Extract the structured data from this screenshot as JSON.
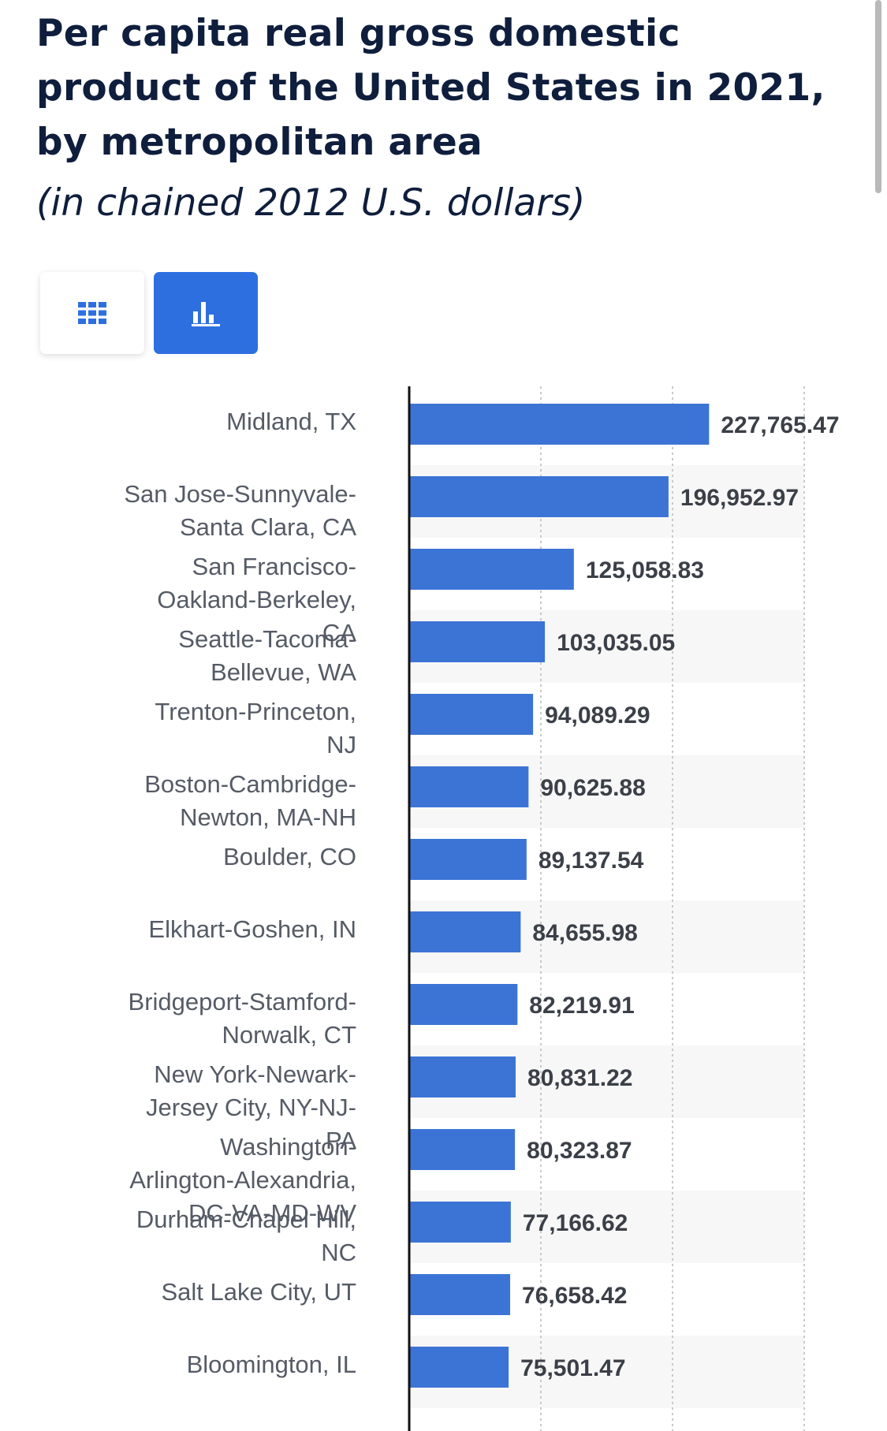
{
  "header": {
    "title": "Per capita real gross domestic product of the United States in 2021, by metropolitan area",
    "subtitle": "(in chained 2012 U.S. dollars)"
  },
  "view_toggle": {
    "table_icon": "grid-icon",
    "chart_icon": "bar-chart-icon",
    "active": "chart",
    "active_color": "#2e6fe0",
    "icon_color": "#2e6fe0"
  },
  "chart_data": {
    "type": "bar",
    "orientation": "horizontal",
    "categories": [
      "Midland, TX",
      "San Jose-Sunnyvale-Santa Clara, CA",
      "San Francisco-Oakland-Berkeley, CA",
      "Seattle-Tacoma-Bellevue, WA",
      "Trenton-Princeton, NJ",
      "Boston-Cambridge-Newton, MA-NH",
      "Boulder, CO",
      "Elkhart-Goshen, IN",
      "Bridgeport-Stamford-Norwalk, CT",
      "New York-Newark-Jersey City, NY-NJ-PA",
      "Washington-Arlington-Alexandria, DC-VA-MD-WV",
      "Durham-Chapel Hill, NC",
      "Salt Lake City, UT",
      "Bloomington, IL"
    ],
    "values": [
      227765.47,
      196952.97,
      125058.83,
      103035.05,
      94089.29,
      90625.88,
      89137.54,
      84655.98,
      82219.91,
      80831.22,
      80323.87,
      77166.62,
      76658.42,
      75501.47
    ],
    "value_labels": [
      "227,765.47",
      "196,952.97",
      "125,058.83",
      "103,035.05",
      "94,089.29",
      "90,625.88",
      "89,137.54",
      "84,655.98",
      "82,219.91",
      "80,831.22",
      "80,323.87",
      "77,166.62",
      "76,658.42",
      "75,501.47"
    ],
    "xlim": [
      0,
      300000
    ],
    "gridlines": [
      100000,
      200000,
      300000
    ],
    "grid": true,
    "bar_color": "#3c74d6",
    "alt_row_color": "#f7f7f7",
    "value_label_color": "#3b3f47"
  }
}
